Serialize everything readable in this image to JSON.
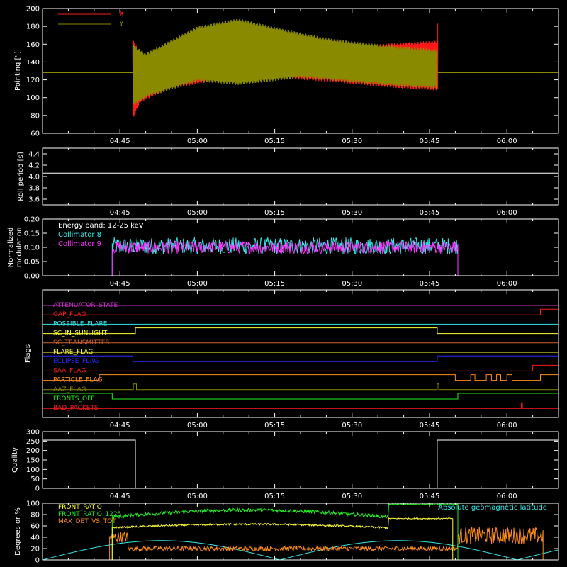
{
  "colors": {
    "background": "#000000",
    "axis": "#ffffff",
    "red": "#ff1a1a",
    "olive": "#8a8a00",
    "cyan": "#33e6e6",
    "magenta": "#ff33ff",
    "yellow": "#ffff33",
    "green": "#22ee22",
    "orange": "#ff8c1a",
    "blue": "#2a2aff",
    "purple": "#cc33cc",
    "brown": "#d06030"
  },
  "chart_data": [
    {
      "type": "line",
      "ylabel": "Pointing [\"]",
      "ylim": [
        60,
        200
      ],
      "yticks": [
        60,
        80,
        100,
        120,
        140,
        160,
        180,
        200
      ],
      "xtick_labels": [
        "04:45",
        "05:00",
        "05:15",
        "05:30",
        "05:45",
        "06:00"
      ],
      "xtick_minutes": [
        45,
        60,
        75,
        90,
        105,
        120
      ],
      "xlim_minutes": [
        30,
        130
      ],
      "series": [
        {
          "name": "X",
          "color": "#ff1a1a",
          "envelope": {
            "start": 47.5,
            "end": 106.6,
            "upper": [
              [
                47.5,
                165
              ],
              [
                49,
                150
              ],
              [
                55,
                150
              ],
              [
                65,
                153
              ],
              [
                80,
                146
              ],
              [
                90,
                158
              ],
              [
                100,
                162
              ],
              [
                106.6,
                164
              ]
            ],
            "lower": [
              [
                47.5,
                75
              ],
              [
                49,
                95
              ],
              [
                55,
                110
              ],
              [
                65,
                120
              ],
              [
                75,
                122
              ],
              [
                85,
                118
              ],
              [
                100,
                110
              ],
              [
                106.6,
                108
              ]
            ]
          }
        },
        {
          "name": "Y",
          "color": "#8a8a00",
          "envelope": {
            "start": 47.5,
            "end": 106.6,
            "upper": [
              [
                47.5,
                160
              ],
              [
                50,
                150
              ],
              [
                60,
                180
              ],
              [
                68,
                189
              ],
              [
                76,
                178
              ],
              [
                85,
                167
              ],
              [
                95,
                160
              ],
              [
                106.6,
                154
              ]
            ],
            "lower": [
              [
                47.5,
                90
              ],
              [
                50,
                100
              ],
              [
                60,
                118
              ],
              [
                68,
                114
              ],
              [
                80,
                122
              ],
              [
                90,
                117
              ],
              [
                100,
                112
              ],
              [
                106.6,
                110
              ]
            ]
          },
          "baseline": 128
        }
      ]
    },
    {
      "type": "line",
      "ylabel": "Roll period [s]",
      "ylim": [
        3.5,
        4.5
      ],
      "yticks": [
        3.6,
        3.8,
        4.0,
        4.2,
        4.4
      ],
      "ytick_labels": [
        "3.6",
        "3.8",
        "4.0",
        "4.2",
        "4.4"
      ],
      "series": [
        {
          "name": "",
          "color": "#ffffff",
          "value": 4.06
        }
      ]
    },
    {
      "type": "line",
      "ylabel": "Normalized modulation",
      "ylim": [
        0,
        0.2
      ],
      "yticks": [
        0.0,
        0.05,
        0.1,
        0.15,
        0.2
      ],
      "ytick_labels": [
        "0.00",
        "0.05",
        "0.10",
        "0.15",
        "0.20"
      ],
      "annotations": [
        "Energy band: 12-25 keV"
      ],
      "series": [
        {
          "name": "Collimator 8",
          "color": "#33e6e6",
          "start": 43.5,
          "end": 110.5,
          "mean": 0.105,
          "spread": 0.06
        },
        {
          "name": "Collimator 9",
          "color": "#ff33ff",
          "start": 43.5,
          "end": 110.5,
          "mean": 0.1,
          "spread": 0.045
        }
      ]
    },
    {
      "type": "line",
      "ylabel": "Flags",
      "series": [
        {
          "name": "ATTENUATOR_STATE",
          "color": "#cc33cc",
          "steps": []
        },
        {
          "name": "GAP_FLAG",
          "color": "#ff1a1a",
          "steps": [
            [
              126.5,
              1
            ]
          ]
        },
        {
          "name": "POSSIBLE_FLARE",
          "color": "#33e6e6",
          "steps": []
        },
        {
          "name": "SC_IN_SUNLIGHT",
          "color": "#ffff33",
          "steps": [
            [
              48,
              1
            ],
            [
              106.5,
              0
            ]
          ]
        },
        {
          "name": "SC_TRANSMITTER",
          "color": "#d06030",
          "steps": []
        },
        {
          "name": "FLARE_FLAG",
          "color": "#ffff33",
          "steps": []
        },
        {
          "name": "ECLIPSE_FLAG",
          "color": "#2a2aff",
          "steps": [
            [
              47.5,
              0
            ],
            [
              106.5,
              1
            ]
          ]
        },
        {
          "name": "SAA_FLAG",
          "color": "#ff1a1a",
          "steps": [
            [
              125,
              1
            ]
          ]
        },
        {
          "name": "PARTICLE_FLAG",
          "color": "#ff8c1a",
          "steps": [
            [
              41,
              1
            ],
            [
              48,
              1
            ],
            [
              110,
              0
            ],
            [
              113,
              1
            ],
            [
              113.8,
              0
            ],
            [
              116,
              1
            ],
            [
              117,
              0
            ],
            [
              118,
              1
            ],
            [
              118.8,
              0
            ],
            [
              120,
              1
            ],
            [
              121,
              0
            ],
            [
              126.5,
              1
            ]
          ]
        },
        {
          "name": "AAZ_FLAG",
          "color": "#8a8a00",
          "steps": [
            [
              47.6,
              1
            ],
            [
              48.2,
              0
            ],
            [
              106.5,
              1
            ],
            [
              106.8,
              0
            ]
          ]
        },
        {
          "name": "FRONTS_OFF",
          "color": "#22ee22",
          "steps": [
            [
              43.5,
              0
            ],
            [
              110.5,
              1
            ]
          ]
        },
        {
          "name": "BAD_PACKETS",
          "color": "#ff1a1a",
          "steps": [
            [
              122.8,
              1
            ],
            [
              123,
              0
            ]
          ]
        }
      ]
    },
    {
      "type": "line",
      "ylabel": "Quality",
      "ylim": [
        0,
        300
      ],
      "yticks": [
        0,
        50,
        100,
        150,
        200,
        250,
        300
      ],
      "series": [
        {
          "name": "",
          "color": "#ffffff",
          "steps": [
            [
              30,
              255
            ],
            [
              48,
              0
            ],
            [
              106.5,
              255
            ]
          ]
        }
      ]
    },
    {
      "type": "line",
      "ylabel": "Degrees or %",
      "ylim": [
        0,
        100
      ],
      "yticks": [
        0,
        20,
        40,
        60,
        80,
        100
      ],
      "series": [
        {
          "name": "FRONT_RATIO",
          "color": "#ffff33"
        },
        {
          "name": "FRONT_RATIO_1225",
          "color": "#22ee22"
        },
        {
          "name": "MAX_DET_VS_TOT",
          "color": "#ff8c1a"
        },
        {
          "name": "Absolute geomagnetic latitude",
          "color": "#33e6e6"
        }
      ]
    }
  ]
}
